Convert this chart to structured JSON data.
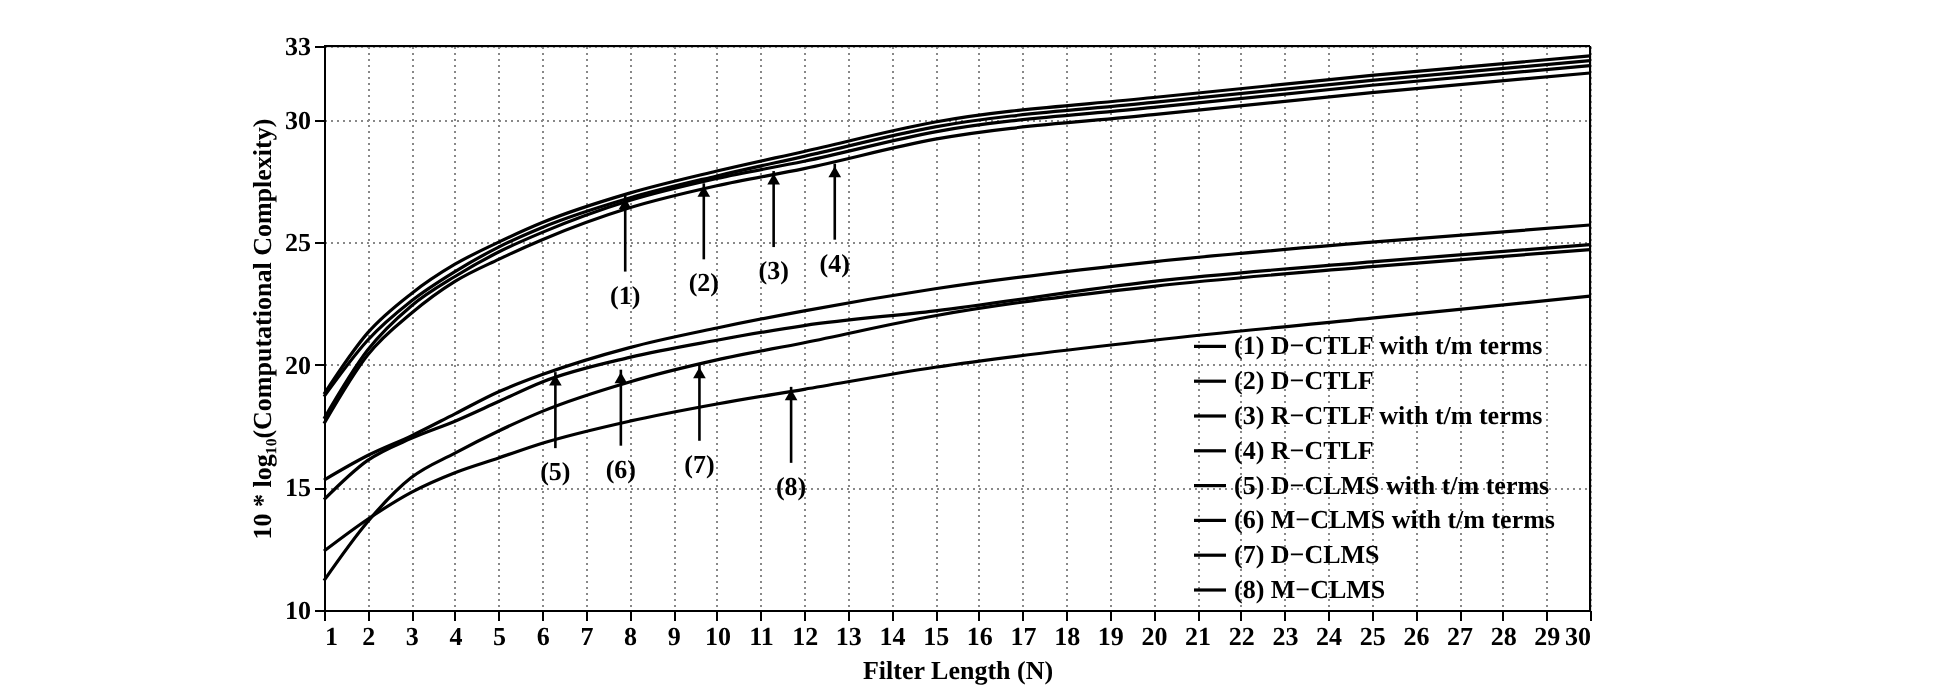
{
  "chart_data": {
    "type": "line",
    "xlabel": "Filter Length (N)",
    "ylabel": "10 * log₁₀(Computational Complexity)",
    "x": [
      1,
      2,
      3,
      4,
      5,
      6,
      8,
      10,
      12,
      15,
      20,
      25,
      30
    ],
    "xlim": [
      1,
      30
    ],
    "xticks": [
      1,
      2,
      3,
      4,
      5,
      6,
      7,
      8,
      9,
      10,
      11,
      12,
      13,
      14,
      15,
      16,
      17,
      18,
      19,
      20,
      21,
      22,
      23,
      24,
      25,
      26,
      27,
      28,
      29,
      30
    ],
    "ylim": [
      10,
      33
    ],
    "yticks": [
      10,
      15,
      20,
      25,
      30,
      33
    ],
    "grid": true,
    "legend": "bottom right",
    "line_style": "solid",
    "marker": "none",
    "series": [
      {
        "name": "(1) D−CTLF with t/m terms",
        "color": "#000000",
        "values": [
          18.8,
          21.3,
          22.9,
          24.1,
          25.0,
          25.8,
          27.0,
          27.9,
          28.7,
          29.9,
          30.9,
          31.8,
          32.6
        ]
      },
      {
        "name": "(2) D−CTLF",
        "color": "#000000",
        "values": [
          18.7,
          21.0,
          22.6,
          23.8,
          24.8,
          25.6,
          26.8,
          27.7,
          28.5,
          29.7,
          30.7,
          31.6,
          32.4
        ]
      },
      {
        "name": "(3) R−CTLF with t/m terms",
        "color": "#000000",
        "values": [
          17.8,
          20.6,
          22.4,
          23.6,
          24.6,
          25.4,
          26.7,
          27.6,
          28.3,
          29.5,
          30.5,
          31.4,
          32.2
        ]
      },
      {
        "name": "(4) R−CTLF",
        "color": "#000000",
        "values": [
          17.6,
          20.4,
          22.1,
          23.4,
          24.3,
          25.1,
          26.4,
          27.3,
          28.0,
          29.2,
          30.2,
          31.1,
          31.9
        ]
      },
      {
        "name": "(5) D−CLMS with t/m terms",
        "color": "#000000",
        "values": [
          15.3,
          16.3,
          17.1,
          18.0,
          18.9,
          19.6,
          20.7,
          21.5,
          22.2,
          23.1,
          24.2,
          25.0,
          25.7
        ]
      },
      {
        "name": "(6) M−CLMS with t/m terms",
        "color": "#000000",
        "values": [
          14.5,
          16.1,
          17.0,
          17.7,
          18.5,
          19.3,
          20.3,
          21.0,
          21.6,
          22.2,
          23.4,
          24.2,
          24.9
        ]
      },
      {
        "name": "(7) D−CLMS",
        "color": "#000000",
        "values": [
          11.2,
          13.6,
          15.4,
          16.4,
          17.3,
          18.1,
          19.3,
          20.2,
          20.9,
          22.0,
          23.2,
          24.0,
          24.7
        ]
      },
      {
        "name": "(8) M−CLMS",
        "color": "#000000",
        "values": [
          12.4,
          13.7,
          14.8,
          15.6,
          16.2,
          16.8,
          17.7,
          18.4,
          19.0,
          19.9,
          21.0,
          21.9,
          22.8
        ]
      }
    ],
    "annotations": [
      {
        "text": "(1)",
        "x": 7.9,
        "y": 26.9
      },
      {
        "text": "(2)",
        "x": 9.7,
        "y": 27.4
      },
      {
        "text": "(3)",
        "x": 11.3,
        "y": 27.9
      },
      {
        "text": "(4)",
        "x": 12.7,
        "y": 28.2
      },
      {
        "text": "(5)",
        "x": 6.3,
        "y": 19.7
      },
      {
        "text": "(6)",
        "x": 7.8,
        "y": 19.8
      },
      {
        "text": "(7)",
        "x": 9.6,
        "y": 20.0
      },
      {
        "text": "(8)",
        "x": 11.7,
        "y": 19.1
      }
    ]
  }
}
